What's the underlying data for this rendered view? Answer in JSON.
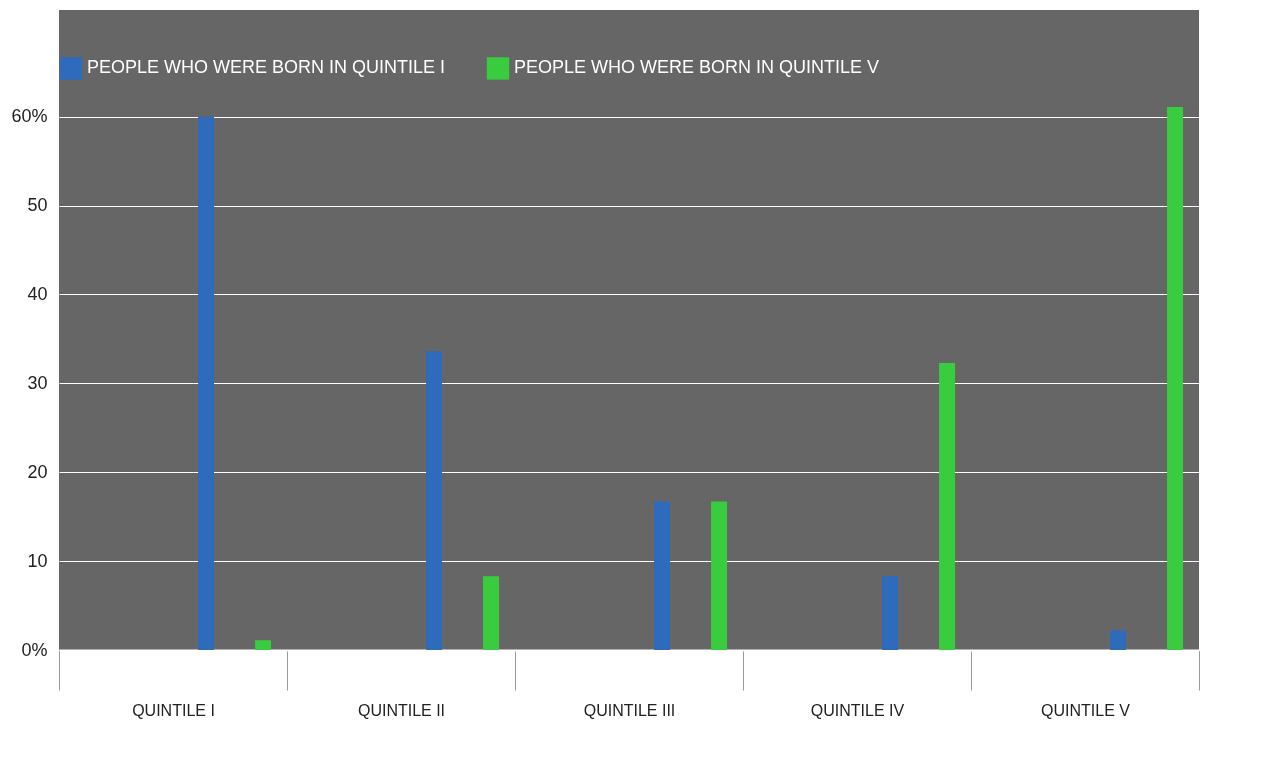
{
  "chart_data": {
    "type": "bar",
    "categories": [
      "QUINTILE I",
      "QUINTILE II",
      "QUINTILE III",
      "QUINTILE IV",
      "QUINTILE V"
    ],
    "series": [
      {
        "name": "PEOPLE WHO WERE BORN IN QUINTILE I",
        "color": "#2e6bbd",
        "values": [
          60,
          33.6,
          16.7,
          8.3,
          2.2
        ]
      },
      {
        "name": "PEOPLE WHO WERE BORN IN QUINTILE V",
        "color": "#3acc3f",
        "values": [
          1.1,
          8.3,
          16.7,
          32.3,
          61.1
        ]
      }
    ],
    "ylim": [
      0,
      72
    ],
    "yticks": [
      {
        "value": 0,
        "label": "0%"
      },
      10,
      20,
      30,
      40,
      50,
      {
        "value": 60,
        "label": "60%"
      }
    ],
    "grid": "y",
    "legend": "top"
  }
}
